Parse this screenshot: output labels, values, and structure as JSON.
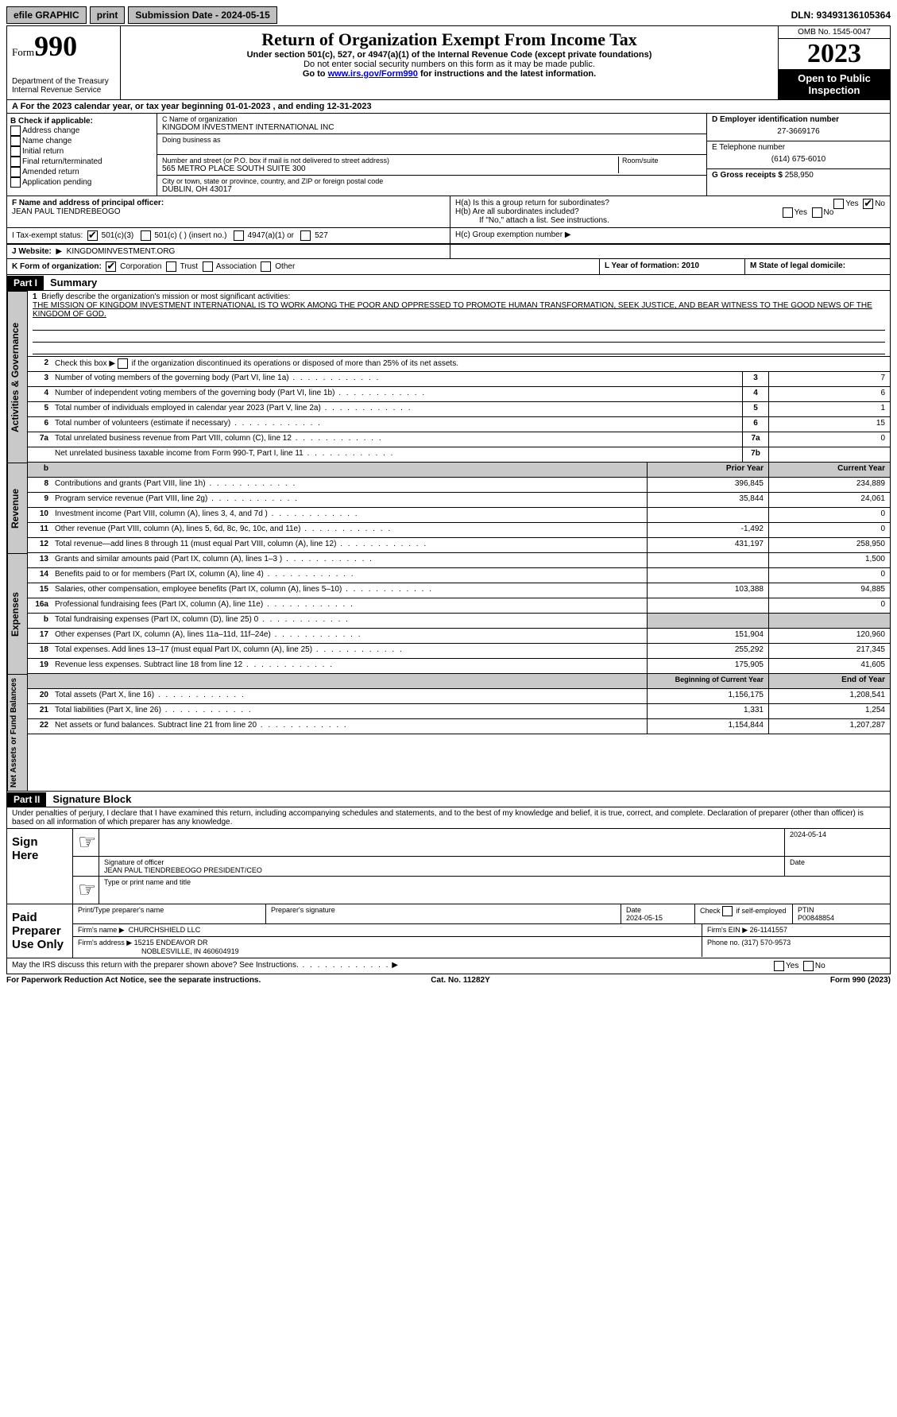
{
  "topbar": {
    "efile": "efile GRAPHIC",
    "print": "print",
    "sub_label": "Submission Date - 2024-05-15",
    "dln": "DLN: 93493136105364"
  },
  "header": {
    "form_word": "Form",
    "form_num": "990",
    "dept": "Department of the Treasury",
    "irs": "Internal Revenue Service",
    "title": "Return of Organization Exempt From Income Tax",
    "sub1": "Under section 501(c), 527, or 4947(a)(1) of the Internal Revenue Code (except private foundations)",
    "sub2": "Do not enter social security numbers on this form as it may be made public.",
    "sub3_pre": "Go to ",
    "sub3_link": "www.irs.gov/Form990",
    "sub3_post": " for instructions and the latest information.",
    "omb": "OMB No. 1545-0047",
    "year": "2023",
    "inspect": "Open to Public Inspection"
  },
  "row_a": "A For the 2023 calendar year, or tax year beginning 01-01-2023   , and ending 12-31-2023",
  "section_b": {
    "label": "B Check if applicable:",
    "items": [
      "Address change",
      "Name change",
      "Initial return",
      "Final return/terminated",
      "Amended return",
      "Application pending"
    ]
  },
  "section_c": {
    "name_lbl": "C Name of organization",
    "name": "KINGDOM INVESTMENT INTERNATIONAL INC",
    "dba_lbl": "Doing business as",
    "addr_lbl": "Number and street (or P.O. box if mail is not delivered to street address)",
    "room_lbl": "Room/suite",
    "addr": "565 METRO PLACE SOUTH SUITE 300",
    "city_lbl": "City or town, state or province, country, and ZIP or foreign postal code",
    "city": "DUBLIN, OH  43017"
  },
  "section_d": {
    "ein_lbl": "D Employer identification number",
    "ein": "27-3669176",
    "tel_lbl": "E Telephone number",
    "tel": "(614) 675-6010",
    "gross_lbl": "G Gross receipts $",
    "gross": "258,950"
  },
  "section_f": {
    "lbl": "F Name and address of principal officer:",
    "name": "JEAN PAUL TIENDREBEOGO"
  },
  "section_h": {
    "ha": "H(a)  Is this a group return for subordinates?",
    "hb": "H(b)  Are all subordinates included?",
    "hb_note": "If \"No,\" attach a list. See instructions.",
    "hc": "H(c)  Group exemption number ",
    "yes": "Yes",
    "no": "No"
  },
  "section_i": {
    "lbl": "I    Tax-exempt status:",
    "opts": [
      "501(c)(3)",
      "501(c) (  ) (insert no.)",
      "4947(a)(1) or",
      "527"
    ]
  },
  "section_j": {
    "lbl": "J    Website: ",
    "val": "KINGDOMINVESTMENT.ORG"
  },
  "section_k": {
    "lbl": "K Form of organization:",
    "opts": [
      "Corporation",
      "Trust",
      "Association",
      "Other"
    ]
  },
  "section_l": {
    "lbl": "L Year of formation: 2010"
  },
  "section_m": {
    "lbl": "M State of legal domicile:"
  },
  "part1": {
    "num": "Part I",
    "title": "Summary"
  },
  "summary": {
    "q1_lbl": "Briefly describe the organization's mission or most significant activities:",
    "q1_text": "THE MISSION OF KINGDOM INVESTMENT INTERNATIONAL IS TO WORK AMONG THE POOR AND OPPRESSED TO PROMOTE HUMAN TRANSFORMATION, SEEK JUSTICE, AND BEAR WITNESS TO THE GOOD NEWS OF THE KINGDOM OF GOD.",
    "q2": "Check this box        if the organization discontinued its operations or disposed of more than 25% of its net assets.",
    "lines_ag": [
      {
        "n": "3",
        "t": "Number of voting members of the governing body (Part VI, line 1a)",
        "b": "3",
        "v": "7"
      },
      {
        "n": "4",
        "t": "Number of independent voting members of the governing body (Part VI, line 1b)",
        "b": "4",
        "v": "6"
      },
      {
        "n": "5",
        "t": "Total number of individuals employed in calendar year 2023 (Part V, line 2a)",
        "b": "5",
        "v": "1"
      },
      {
        "n": "6",
        "t": "Total number of volunteers (estimate if necessary)",
        "b": "6",
        "v": "15"
      },
      {
        "n": "7a",
        "t": "Total unrelated business revenue from Part VIII, column (C), line 12",
        "b": "7a",
        "v": "0"
      },
      {
        "n": "",
        "t": "Net unrelated business taxable income from Form 990-T, Part I, line 11",
        "b": "7b",
        "v": ""
      }
    ],
    "col_hdr_b": "b",
    "col_hdr_prior": "Prior Year",
    "col_hdr_curr": "Current Year",
    "lines_rev": [
      {
        "n": "8",
        "t": "Contributions and grants (Part VIII, line 1h)",
        "p": "396,845",
        "c": "234,889"
      },
      {
        "n": "9",
        "t": "Program service revenue (Part VIII, line 2g)",
        "p": "35,844",
        "c": "24,061"
      },
      {
        "n": "10",
        "t": "Investment income (Part VIII, column (A), lines 3, 4, and 7d )",
        "p": "",
        "c": "0"
      },
      {
        "n": "11",
        "t": "Other revenue (Part VIII, column (A), lines 5, 6d, 8c, 9c, 10c, and 11e)",
        "p": "-1,492",
        "c": "0"
      },
      {
        "n": "12",
        "t": "Total revenue—add lines 8 through 11 (must equal Part VIII, column (A), line 12)",
        "p": "431,197",
        "c": "258,950"
      }
    ],
    "lines_exp": [
      {
        "n": "13",
        "t": "Grants and similar amounts paid (Part IX, column (A), lines 1–3 )",
        "p": "",
        "c": "1,500"
      },
      {
        "n": "14",
        "t": "Benefits paid to or for members (Part IX, column (A), line 4)",
        "p": "",
        "c": "0"
      },
      {
        "n": "15",
        "t": "Salaries, other compensation, employee benefits (Part IX, column (A), lines 5–10)",
        "p": "103,388",
        "c": "94,885"
      },
      {
        "n": "16a",
        "t": "Professional fundraising fees (Part IX, column (A), line 11e)",
        "p": "",
        "c": "0"
      },
      {
        "n": "b",
        "t": "Total fundraising expenses (Part IX, column (D), line 25) 0",
        "p": "",
        "c": "",
        "shade": true
      },
      {
        "n": "17",
        "t": "Other expenses (Part IX, column (A), lines 11a–11d, 11f–24e)",
        "p": "151,904",
        "c": "120,960"
      },
      {
        "n": "18",
        "t": "Total expenses. Add lines 13–17 (must equal Part IX, column (A), line 25)",
        "p": "255,292",
        "c": "217,345"
      },
      {
        "n": "19",
        "t": "Revenue less expenses. Subtract line 18 from line 12",
        "p": "175,905",
        "c": "41,605"
      }
    ],
    "col_hdr_beg": "Beginning of Current Year",
    "col_hdr_end": "End of Year",
    "lines_net": [
      {
        "n": "20",
        "t": "Total assets (Part X, line 16)",
        "p": "1,156,175",
        "c": "1,208,541"
      },
      {
        "n": "21",
        "t": "Total liabilities (Part X, line 26)",
        "p": "1,331",
        "c": "1,254"
      },
      {
        "n": "22",
        "t": "Net assets or fund balances. Subtract line 21 from line 20",
        "p": "1,154,844",
        "c": "1,207,287"
      }
    ],
    "vtab_ag": "Activities & Governance",
    "vtab_rev": "Revenue",
    "vtab_exp": "Expenses",
    "vtab_net": "Net Assets or Fund Balances"
  },
  "part2": {
    "num": "Part II",
    "title": "Signature Block"
  },
  "sig": {
    "perjury": "Under penalties of perjury, I declare that I have examined this return, including accompanying schedules and statements, and to the best of my knowledge and belief, it is true, correct, and complete. Declaration of preparer (other than officer) is based on all information of which preparer has any knowledge.",
    "sign_here": "Sign Here",
    "date1": "2024-05-14",
    "sig_officer_lbl": "Signature of officer",
    "officer": "JEAN PAUL TIENDREBEOGO PRESIDENT/CEO",
    "type_lbl": "Type or print name and title",
    "date_lbl": "Date",
    "paid": "Paid Preparer Use Only",
    "prep_name_lbl": "Print/Type preparer's name",
    "prep_sig_lbl": "Preparer's signature",
    "date2": "2024-05-15",
    "check_lbl": "Check         if self-employed",
    "ptin_lbl": "PTIN",
    "ptin": "P00848854",
    "firm_name_lbl": "Firm's name   ",
    "firm_name": "CHURCHSHIELD LLC",
    "firm_ein_lbl": "Firm's EIN  ",
    "firm_ein": "26-1141557",
    "firm_addr_lbl": "Firm's address ",
    "firm_addr1": "15215 ENDEAVOR DR",
    "firm_addr2": "NOBLESVILLE, IN  460604919",
    "phone_lbl": "Phone no. ",
    "phone": "(317) 570-9573",
    "discuss": "May the IRS discuss this return with the preparer shown above? See Instructions."
  },
  "footer": {
    "left": "For Paperwork Reduction Act Notice, see the separate instructions.",
    "mid": "Cat. No. 11282Y",
    "right": "Form 990 (2023)"
  }
}
